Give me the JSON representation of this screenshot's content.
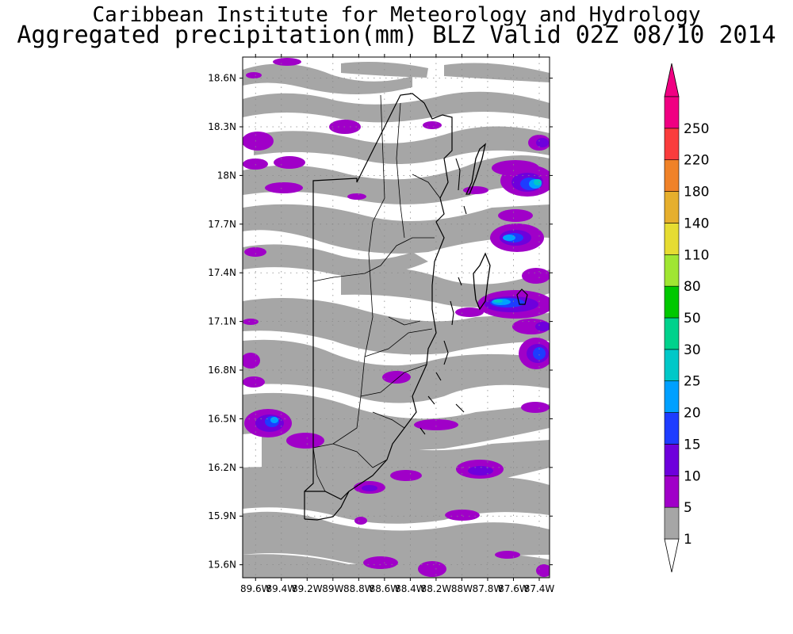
{
  "title": {
    "line1": "Caribbean Institute for Meteorology and Hydrology",
    "line2": "Aggregated precipitation(mm) BLZ Valid 02Z 08/10 2014"
  },
  "map": {
    "lat_range": [
      15.52,
      18.73
    ],
    "lon_range": [
      -89.7,
      -87.32
    ],
    "lat_ticks": [
      {
        "value": 18.6,
        "label": "18.6N"
      },
      {
        "value": 18.3,
        "label": "18.3N"
      },
      {
        "value": 18.0,
        "label": "18N"
      },
      {
        "value": 17.7,
        "label": "17.7N"
      },
      {
        "value": 17.4,
        "label": "17.4N"
      },
      {
        "value": 17.1,
        "label": "17.1N"
      },
      {
        "value": 16.8,
        "label": "16.8N"
      },
      {
        "value": 16.5,
        "label": "16.5N"
      },
      {
        "value": 16.2,
        "label": "16.2N"
      },
      {
        "value": 15.9,
        "label": "15.9N"
      },
      {
        "value": 15.6,
        "label": "15.6N"
      }
    ],
    "lon_ticks": [
      {
        "value": -89.6,
        "label": "89.6W"
      },
      {
        "value": -89.4,
        "label": "89.4W"
      },
      {
        "value": -89.2,
        "label": "89.2W"
      },
      {
        "value": -89.0,
        "label": "89W"
      },
      {
        "value": -88.8,
        "label": "88.8W"
      },
      {
        "value": -88.6,
        "label": "88.6W"
      },
      {
        "value": -88.4,
        "label": "88.4W"
      },
      {
        "value": -88.2,
        "label": "88.2W"
      },
      {
        "value": -88.0,
        "label": "88W"
      },
      {
        "value": -87.8,
        "label": "87.8W"
      },
      {
        "value": -87.6,
        "label": "87.6W"
      },
      {
        "value": -87.4,
        "label": "87.4W"
      }
    ],
    "grid": true
  },
  "colorbar": {
    "levels": [
      {
        "label": "1",
        "color": "#ffffff"
      },
      {
        "label": "5",
        "color": "#a6a6a6"
      },
      {
        "label": "10",
        "color": "#a000c8"
      },
      {
        "label": "15",
        "color": "#6e00dc"
      },
      {
        "label": "20",
        "color": "#1e3cff"
      },
      {
        "label": "25",
        "color": "#00a0ff"
      },
      {
        "label": "30",
        "color": "#00c8c8"
      },
      {
        "label": "50",
        "color": "#00d28c"
      },
      {
        "label": "80",
        "color": "#00c800"
      },
      {
        "label": "110",
        "color": "#a0e632"
      },
      {
        "label": "140",
        "color": "#e6dc32"
      },
      {
        "label": "180",
        "color": "#e6af2d"
      },
      {
        "label": "220",
        "color": "#f08228"
      },
      {
        "label": "250",
        "color": "#fa3c3c"
      }
    ],
    "top_color": "#f00082"
  }
}
